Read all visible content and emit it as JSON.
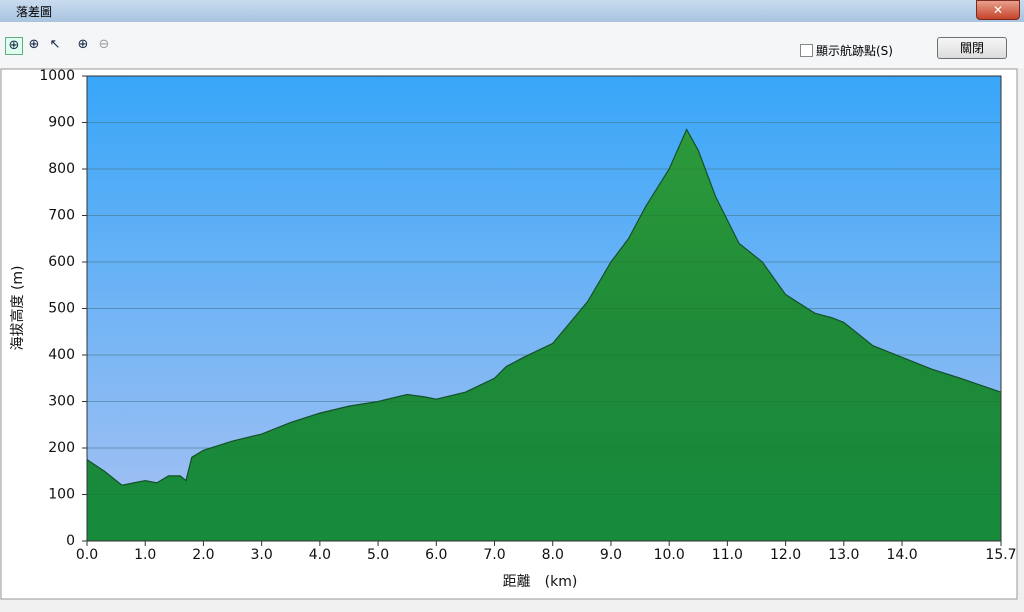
{
  "window": {
    "title": "落差圖"
  },
  "toolbar": {
    "checkbox_label": "顯示航跡點(S)",
    "button": "關閉"
  },
  "chart_data": {
    "type": "area",
    "ylabel": "海拔高度 (m)",
    "xlabel": "距離　(km)",
    "x": [
      0,
      0.3,
      0.6,
      0.8,
      1.0,
      1.2,
      1.4,
      1.6,
      1.7,
      1.8,
      2.0,
      2.5,
      3.0,
      3.5,
      4.0,
      4.5,
      5.0,
      5.5,
      5.8,
      6.0,
      6.5,
      7.0,
      7.2,
      7.5,
      8.0,
      8.3,
      8.6,
      9.0,
      9.3,
      9.6,
      10.0,
      10.3,
      10.5,
      10.8,
      11.0,
      11.2,
      11.6,
      12.0,
      12.5,
      12.8,
      13.0,
      13.5,
      14.0,
      14.5,
      15.0,
      15.7
    ],
    "values": [
      175,
      150,
      120,
      125,
      130,
      125,
      140,
      140,
      130,
      180,
      195,
      215,
      230,
      255,
      275,
      290,
      300,
      315,
      310,
      305,
      320,
      350,
      375,
      395,
      425,
      470,
      515,
      600,
      650,
      720,
      800,
      885,
      840,
      740,
      690,
      640,
      600,
      530,
      490,
      480,
      470,
      420,
      395,
      370,
      350,
      320
    ],
    "color": "#1e9a3c",
    "xlim": [
      0,
      15.7
    ],
    "ylim": [
      0,
      1000
    ],
    "xticks": [
      {
        "value": 0,
        "label": "0.0"
      },
      {
        "value": 1,
        "label": "1.0"
      },
      {
        "value": 2,
        "label": "2.0"
      },
      {
        "value": 3,
        "label": "3.0"
      },
      {
        "value": 4,
        "label": "4.0"
      },
      {
        "value": 5,
        "label": "5.0"
      },
      {
        "value": 6,
        "label": "6.0"
      },
      {
        "value": 7,
        "label": "7.0"
      },
      {
        "value": 8,
        "label": "8.0"
      },
      {
        "value": 9,
        "label": "9.0"
      },
      {
        "value": 10,
        "label": "10.0"
      },
      {
        "value": 11,
        "label": "11.0"
      },
      {
        "value": 12,
        "label": "12.0"
      },
      {
        "value": 13,
        "label": "13.0"
      },
      {
        "value": 14,
        "label": "14.0"
      },
      15.7
    ],
    "yticks": [
      0,
      100,
      200,
      300,
      400,
      500,
      600,
      700,
      800,
      900,
      1000
    ],
    "grid": true
  }
}
